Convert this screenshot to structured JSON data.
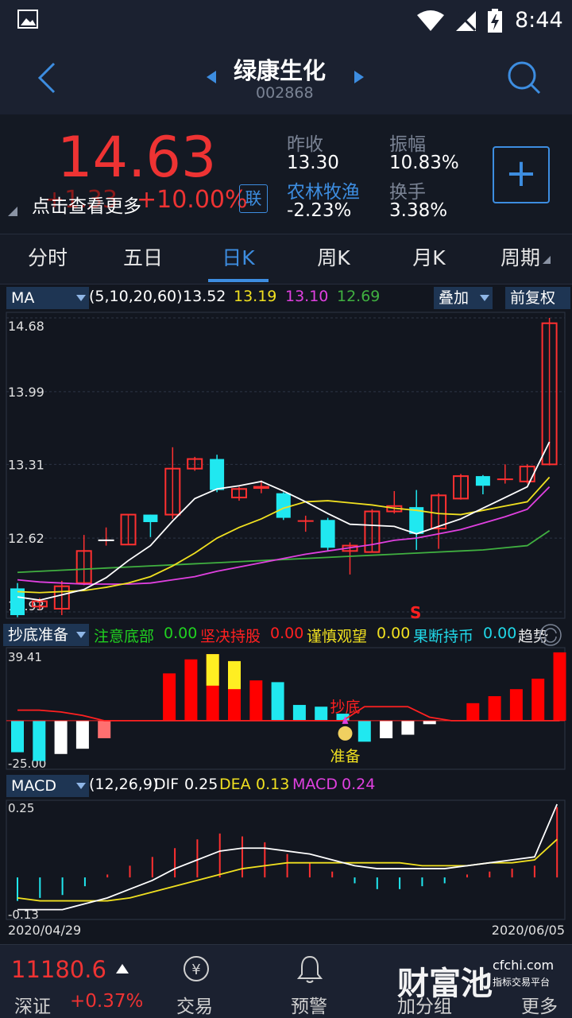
{
  "status": {
    "time": "8:44"
  },
  "header": {
    "name": "绿康生化",
    "code": "002868"
  },
  "quote": {
    "price": "14.63",
    "change_hidden": "+1.33",
    "change_pct": "+10.00%",
    "hint": "点击查看更多",
    "lian": "联",
    "prev_close_label": "昨收",
    "prev_close": "13.30",
    "amp_label": "振幅",
    "amp": "10.83%",
    "sector_label": "农林牧渔",
    "sector_change": "-2.23%",
    "turnover_label": "换手",
    "turnover": "3.38%",
    "add_label": "+"
  },
  "tabs": [
    "分时",
    "五日",
    "日K",
    "周K",
    "月K",
    "周期"
  ],
  "ma_bar": {
    "indicator": "MA",
    "params": "(5,10,20,60)",
    "ma5": "13.52",
    "ma10": "13.19",
    "ma20": "13.10",
    "ma60": "12.69",
    "overlay": "叠加",
    "adjust": "前复权",
    "colors": {
      "ma5": "#ffffff",
      "ma10": "#f0e020",
      "ma20": "#e040e0",
      "ma60": "#40b040"
    }
  },
  "kline": {
    "y_labels": [
      "14.68",
      "13.99",
      "13.31",
      "12.62",
      "11.93"
    ],
    "ylim": [
      11.93,
      14.68
    ],
    "s_marker": "S",
    "candles": [
      {
        "o": 12.15,
        "c": 11.9,
        "h": 12.2,
        "l": 11.88
      },
      {
        "o": 11.98,
        "c": 12.03,
        "h": 12.06,
        "l": 11.95
      },
      {
        "o": 11.96,
        "c": 12.17,
        "h": 12.22,
        "l": 11.9
      },
      {
        "o": 12.2,
        "c": 12.5,
        "h": 12.65,
        "l": 12.18
      },
      {
        "o": 12.6,
        "c": 12.6,
        "h": 12.72,
        "l": 12.55
      },
      {
        "o": 12.56,
        "c": 12.84,
        "h": 12.84,
        "l": 12.56
      },
      {
        "o": 12.84,
        "c": 12.77,
        "h": 12.84,
        "l": 12.63
      },
      {
        "o": 12.84,
        "c": 13.27,
        "h": 13.47,
        "l": 12.8
      },
      {
        "o": 13.27,
        "c": 13.36,
        "h": 13.38,
        "l": 13.25
      },
      {
        "o": 13.36,
        "c": 13.07,
        "h": 13.4,
        "l": 13.05
      },
      {
        "o": 13.0,
        "c": 13.08,
        "h": 13.1,
        "l": 12.97
      },
      {
        "o": 13.09,
        "c": 13.1,
        "h": 13.16,
        "l": 13.04
      },
      {
        "o": 13.04,
        "c": 12.81,
        "h": 13.05,
        "l": 12.79
      },
      {
        "o": 12.78,
        "c": 12.78,
        "h": 12.83,
        "l": 12.68
      },
      {
        "o": 12.79,
        "c": 12.53,
        "h": 12.81,
        "l": 12.5
      },
      {
        "o": 12.5,
        "c": 12.55,
        "h": 12.58,
        "l": 12.28
      },
      {
        "o": 12.49,
        "c": 12.87,
        "h": 12.89,
        "l": 12.49
      },
      {
        "o": 12.87,
        "c": 12.92,
        "h": 13.06,
        "l": 12.85
      },
      {
        "o": 12.91,
        "c": 12.66,
        "h": 13.07,
        "l": 12.51
      },
      {
        "o": 12.71,
        "c": 13.02,
        "h": 13.04,
        "l": 12.52
      },
      {
        "o": 12.99,
        "c": 13.2,
        "h": 13.22,
        "l": 12.98
      },
      {
        "o": 13.2,
        "c": 13.11,
        "h": 13.21,
        "l": 13.03
      },
      {
        "o": 13.17,
        "c": 13.17,
        "h": 13.31,
        "l": 13.13
      },
      {
        "o": 13.15,
        "c": 13.29,
        "h": 13.31,
        "l": 13.13
      },
      {
        "o": 13.31,
        "c": 14.63,
        "h": 14.68,
        "l": 13.3
      }
    ],
    "ma5": [
      12.07,
      12.04,
      12.09,
      12.14,
      12.25,
      12.41,
      12.55,
      12.78,
      12.99,
      13.08,
      13.11,
      13.15,
      13.06,
      12.96,
      12.85,
      12.75,
      12.74,
      12.73,
      12.66,
      12.73,
      12.8,
      12.9,
      13.0,
      13.1,
      13.52
    ],
    "ma10": [
      12.12,
      12.11,
      12.12,
      12.13,
      12.16,
      12.2,
      12.26,
      12.36,
      12.48,
      12.62,
      12.72,
      12.8,
      12.9,
      12.96,
      12.97,
      12.95,
      12.93,
      12.9,
      12.88,
      12.85,
      12.84,
      12.88,
      12.92,
      12.96,
      13.19
    ],
    "ma20": [
      12.23,
      12.21,
      12.2,
      12.19,
      12.19,
      12.19,
      12.2,
      12.23,
      12.26,
      12.31,
      12.35,
      12.39,
      12.43,
      12.47,
      12.5,
      12.53,
      12.56,
      12.6,
      12.62,
      12.66,
      12.7,
      12.76,
      12.82,
      12.89,
      13.1
    ],
    "ma60": [
      12.3,
      12.31,
      12.32,
      12.33,
      12.34,
      12.35,
      12.36,
      12.37,
      12.38,
      12.39,
      12.4,
      12.41,
      12.42,
      12.43,
      12.44,
      12.45,
      12.46,
      12.47,
      12.48,
      12.49,
      12.5,
      12.51,
      12.53,
      12.55,
      12.69
    ]
  },
  "chaodi_bar": {
    "indicator": "抄底准备",
    "items": [
      {
        "label": "注意底部",
        "value": "0.00",
        "color": "#20d020"
      },
      {
        "label": "坚决持股",
        "value": "0.00",
        "color": "#ff2020"
      },
      {
        "label": "谨慎观望",
        "value": "0.00",
        "color": "#f0e020"
      },
      {
        "label": "果断持币",
        "value": "0.00",
        "color": "#20d8e8"
      }
    ],
    "trend": "趋势"
  },
  "chaodi": {
    "y_labels": [
      "39.41",
      "-25.00"
    ],
    "ylim": [
      -25,
      39.41
    ],
    "chaodi_label": "抄底",
    "zhunbei_label": "准备",
    "bars": [
      {
        "v": -18,
        "c": "#20e8f0"
      },
      {
        "v": -23,
        "c": "#20e8f0"
      },
      {
        "v": -19,
        "c": "#ffffff"
      },
      {
        "v": -16,
        "c": "#ffffff"
      },
      {
        "v": -10,
        "c": "#ff7070"
      },
      {
        "v": 0,
        "c": "#ff0000"
      },
      {
        "v": 0,
        "c": "#ff0000"
      },
      {
        "v": 27,
        "c": "#ff0000"
      },
      {
        "v": 35,
        "c": "#ff0000"
      },
      {
        "v": 38,
        "c": "#ff0000",
        "top": "#ffee22",
        "topv": 20
      },
      {
        "v": 34,
        "c": "#ff0000",
        "top": "#ffee22",
        "topv": 18
      },
      {
        "v": 23,
        "c": "#ff0000"
      },
      {
        "v": 22,
        "c": "#20e8f0"
      },
      {
        "v": 9,
        "c": "#20e8f0"
      },
      {
        "v": 8,
        "c": "#20e8f0"
      },
      {
        "v": 4,
        "c": "#20e8f0"
      },
      {
        "v": -12,
        "c": "#20e8f0"
      },
      {
        "v": -10,
        "c": "#ffffff"
      },
      {
        "v": -8,
        "c": "#ffffff"
      },
      {
        "v": -2,
        "c": "#ffffff"
      },
      {
        "v": 0,
        "c": "#ff0000"
      },
      {
        "v": 10,
        "c": "#ff0000"
      },
      {
        "v": 14,
        "c": "#ff0000"
      },
      {
        "v": 18,
        "c": "#ff0000"
      },
      {
        "v": 24,
        "c": "#ff0000"
      },
      {
        "v": 39,
        "c": "#ff0000"
      }
    ],
    "line": [
      6,
      6,
      5,
      3,
      0,
      0,
      0,
      0,
      0,
      0,
      0,
      0,
      0,
      0,
      0,
      0,
      8,
      8,
      8,
      2,
      0,
      0,
      0,
      0,
      0,
      0
    ]
  },
  "macd_bar": {
    "indicator": "MACD",
    "params": "(12,26,9)",
    "dif_label": "DIF",
    "dif": "0.25",
    "dea_label": "DEA",
    "dea": "0.13",
    "macd_label": "MACD",
    "macd": "0.24",
    "colors": {
      "dif": "#ffffff",
      "dea": "#f0e020",
      "macd": "#e040e0"
    }
  },
  "macd": {
    "y_labels": [
      "0.25",
      "-0.13"
    ],
    "ylim": [
      -0.13,
      0.25
    ],
    "dif": [
      -0.11,
      -0.11,
      -0.11,
      -0.09,
      -0.07,
      -0.04,
      -0.01,
      0.03,
      0.06,
      0.09,
      0.1,
      0.1,
      0.09,
      0.08,
      0.06,
      0.04,
      0.03,
      0.03,
      0.03,
      0.03,
      0.04,
      0.05,
      0.06,
      0.07,
      0.25
    ],
    "dea": [
      -0.07,
      -0.08,
      -0.08,
      -0.08,
      -0.08,
      -0.07,
      -0.05,
      -0.03,
      -0.01,
      0.01,
      0.03,
      0.04,
      0.05,
      0.05,
      0.05,
      0.05,
      0.05,
      0.05,
      0.04,
      0.04,
      0.04,
      0.05,
      0.05,
      0.06,
      0.13
    ],
    "hist": [
      -0.08,
      -0.07,
      -0.06,
      -0.03,
      0.01,
      0.04,
      0.07,
      0.1,
      0.13,
      0.15,
      0.14,
      0.12,
      0.08,
      0.05,
      0.02,
      -0.02,
      -0.04,
      -0.04,
      -0.03,
      -0.02,
      0.01,
      0.02,
      0.03,
      0.04,
      0.24
    ]
  },
  "dates": {
    "start": "2020/04/29",
    "end": "2020/06/05"
  },
  "bottom": {
    "index_value": "11180.6",
    "index_name": "深证",
    "index_change": "+0.37%",
    "trade": "交易",
    "alert": "预警",
    "add_group": "加分组",
    "more": "更多",
    "watermark": "财富池",
    "watermark_site": "cfchi.com",
    "watermark_sub": "指标交易平台"
  }
}
